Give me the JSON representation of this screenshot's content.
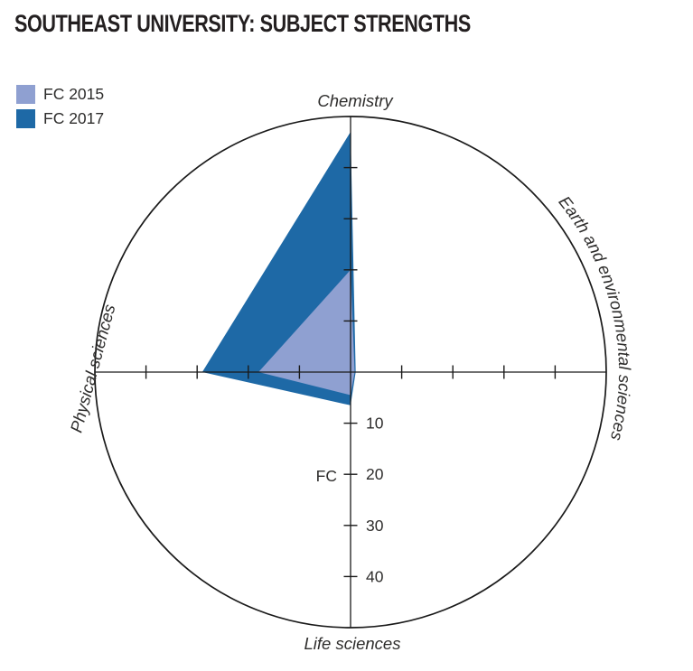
{
  "title": "SOUTHEAST UNIVERSITY: SUBJECT STRENGTHS",
  "legend": {
    "items": [
      {
        "label": "FC 2015",
        "color": "#8fa0d1"
      },
      {
        "label": "FC 2017",
        "color": "#1e69a6"
      }
    ]
  },
  "chart_data": {
    "type": "radar",
    "title": "Southeast University: subject strengths",
    "categories": [
      "Chemistry",
      "Earth and environmental sciences",
      "Life sciences",
      "Physical sciences"
    ],
    "category_angles_deg": [
      0,
      90,
      180,
      270
    ],
    "series": [
      {
        "name": "FC 2015",
        "color": "#8fa0d1",
        "values": [
          20,
          0.8,
          4.5,
          18
        ]
      },
      {
        "name": "FC 2017",
        "color": "#1e69a6",
        "values": [
          47,
          1.0,
          6.5,
          29
        ]
      }
    ],
    "radial_axis": {
      "label": "FC",
      "ticks": [
        10,
        20,
        30,
        40
      ],
      "min": 0,
      "max": 50,
      "tick_labels_shown_on": "bottom-axis"
    },
    "legend_position": "top-left",
    "grid": "cross-axes-with-outer-circle"
  }
}
